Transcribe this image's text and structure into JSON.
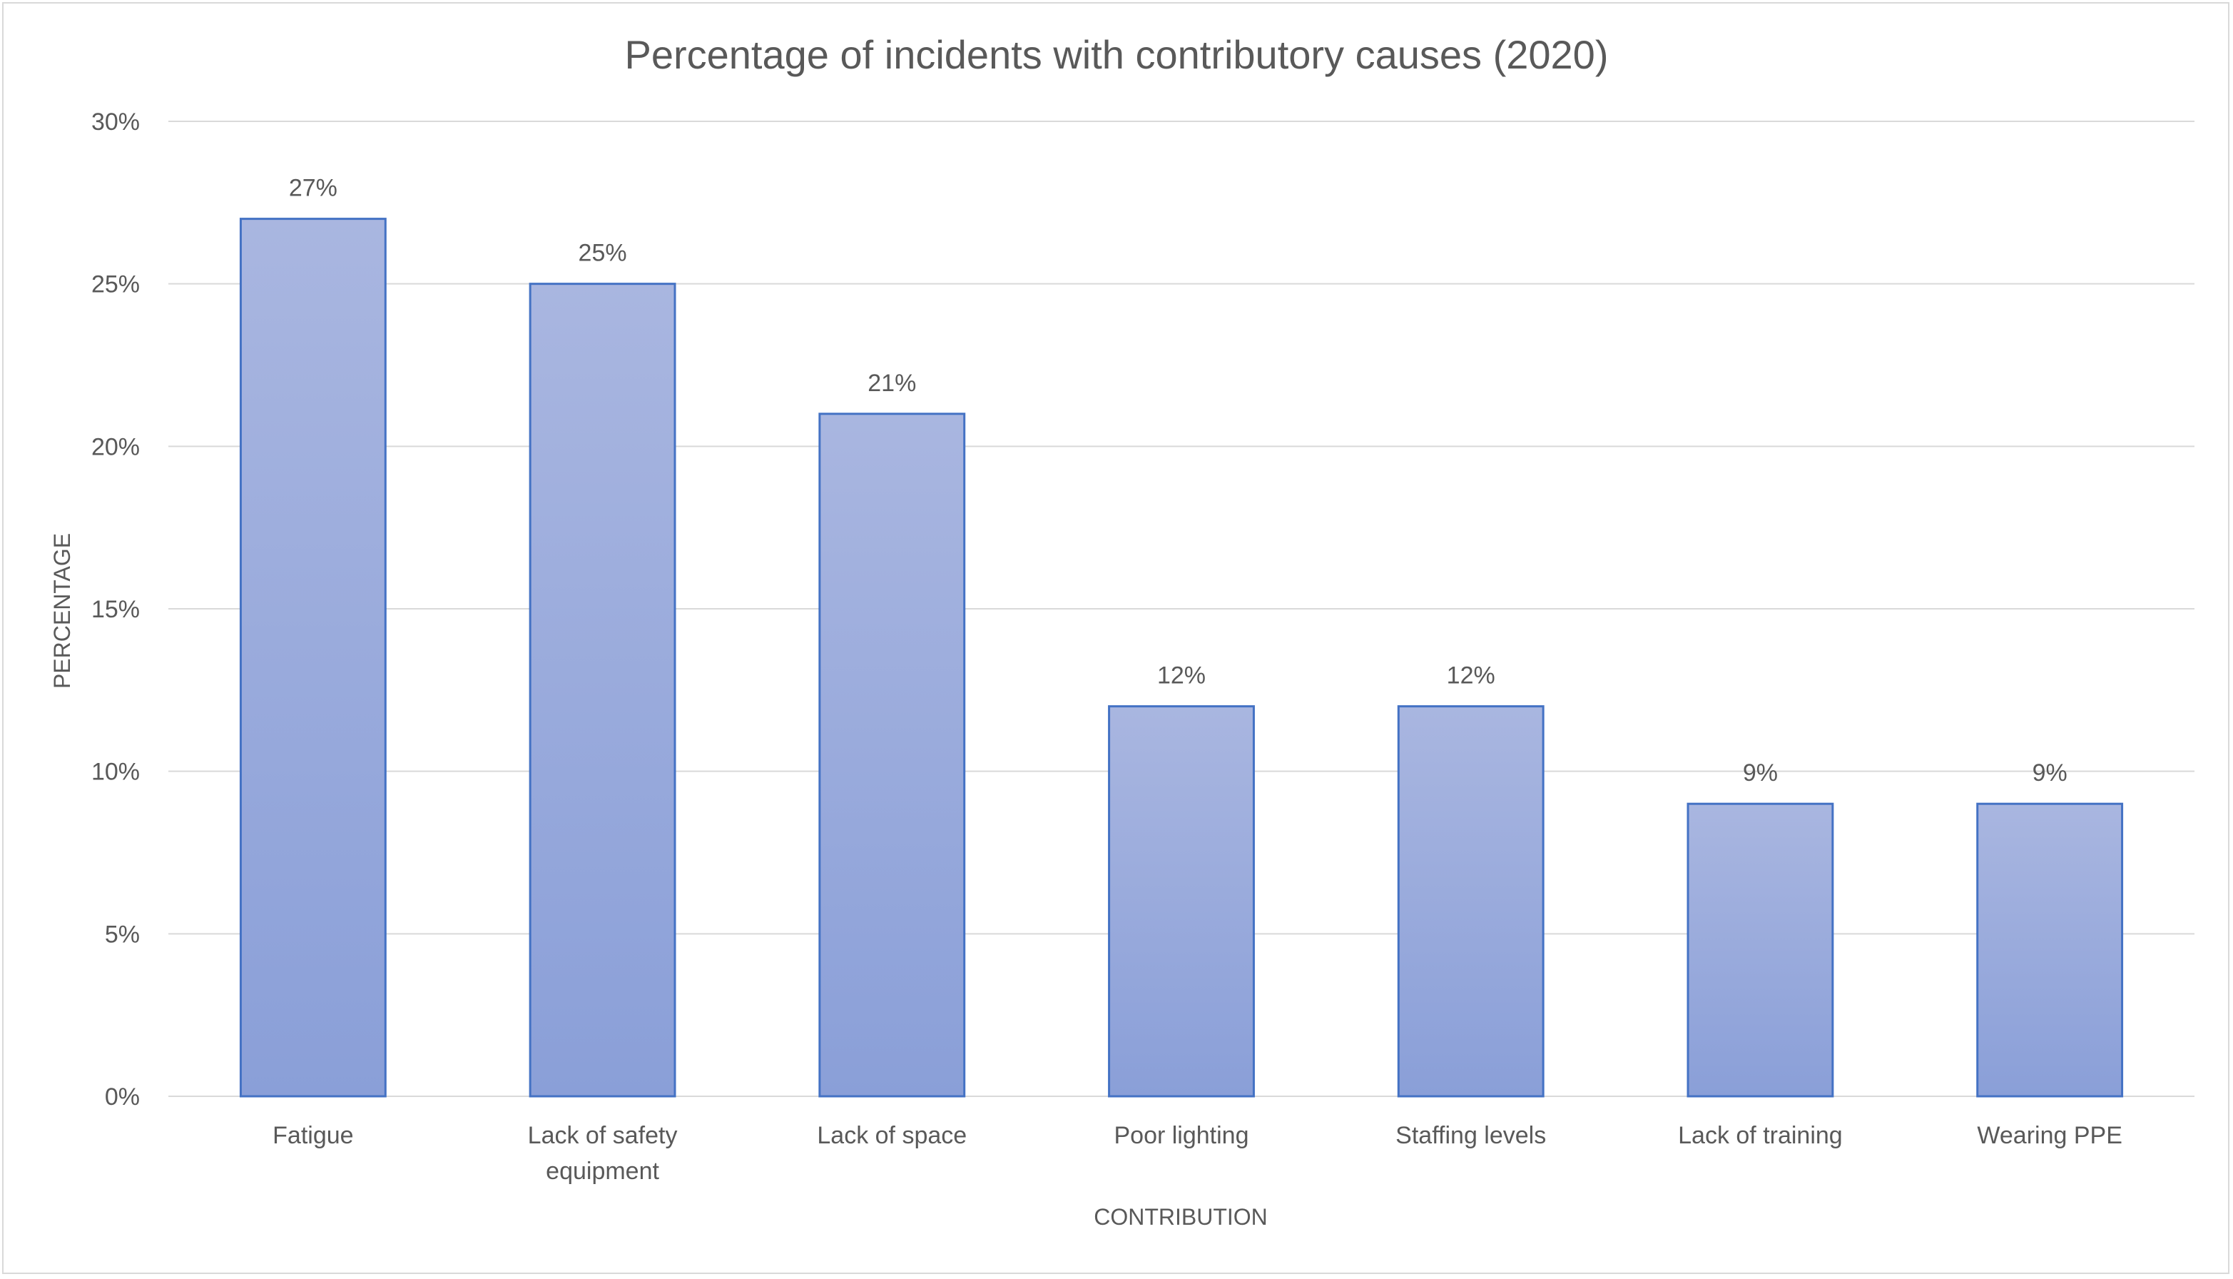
{
  "chart_data": {
    "type": "bar",
    "title": "Percentage of incidents with contributory causes (2020)",
    "xlabel": "CONTRIBUTION",
    "ylabel": "PERCENTAGE",
    "categories": [
      [
        "Fatigue"
      ],
      [
        "Lack of safety",
        "equipment"
      ],
      [
        "Lack of space"
      ],
      [
        "Poor lighting"
      ],
      [
        "Staffing levels"
      ],
      [
        "Lack of training"
      ],
      [
        "Wearing PPE"
      ]
    ],
    "values": [
      27,
      25,
      21,
      12,
      12,
      9,
      9
    ],
    "data_labels": [
      "27%",
      "25%",
      "21%",
      "12%",
      "12%",
      "9%",
      "9%"
    ],
    "ylim": [
      0,
      30
    ],
    "yticks": [
      "0%",
      "5%",
      "10%",
      "15%",
      "20%",
      "25%",
      "30%"
    ],
    "grid": true,
    "legend": "none",
    "colors": {
      "bar_top": "#a9b6e0",
      "bar_bottom": "#8a9fd8",
      "bar_border": "#4472c4",
      "grid": "#d9d9d9",
      "text": "#595959"
    }
  }
}
